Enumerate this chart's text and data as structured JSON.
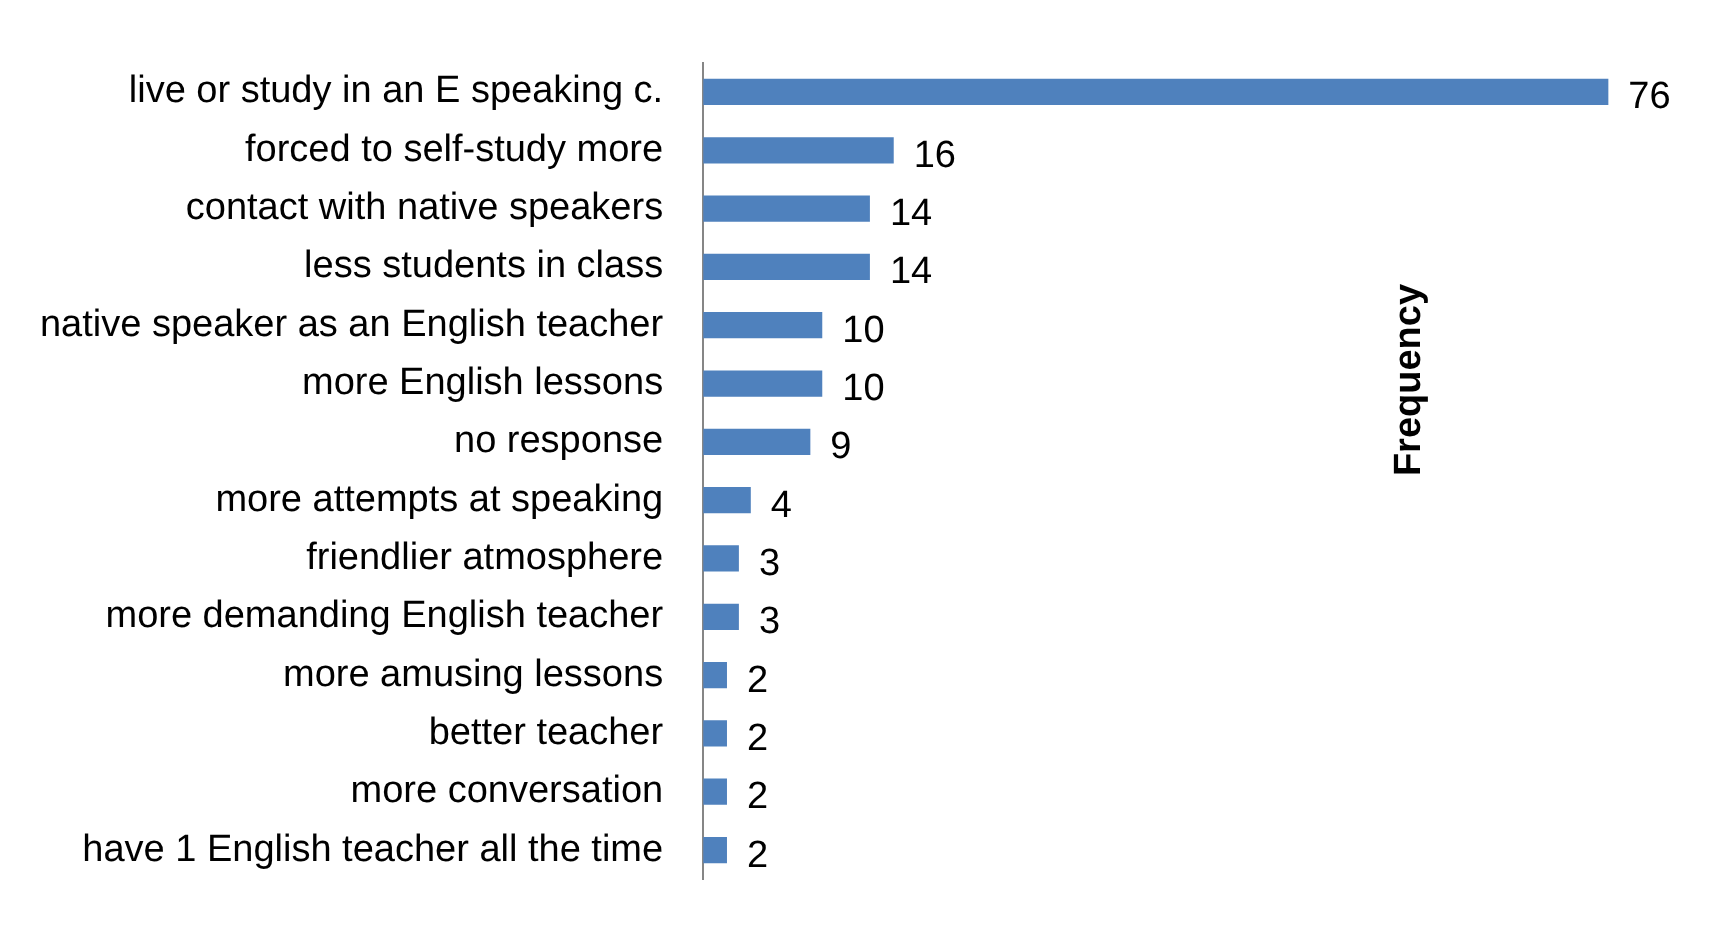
{
  "chart_data": {
    "type": "bar",
    "orientation": "horizontal",
    "categories": [
      "live or study in an E speaking c.",
      "forced to self-study more",
      "contact with native speakers",
      "less students in class",
      "native speaker as an English teacher",
      "more English lessons",
      "no response",
      "more attempts at speaking",
      "friendlier atmosphere",
      "more demanding English teacher",
      "more amusing lessons",
      "better teacher",
      "more conversation",
      "have 1 English teacher all the time"
    ],
    "values": [
      76,
      16,
      14,
      14,
      10,
      10,
      9,
      4,
      3,
      3,
      2,
      2,
      2,
      2
    ],
    "color": "#4f81bd",
    "data_labels": true,
    "legend": false,
    "annotations": [
      "Frequency"
    ]
  }
}
